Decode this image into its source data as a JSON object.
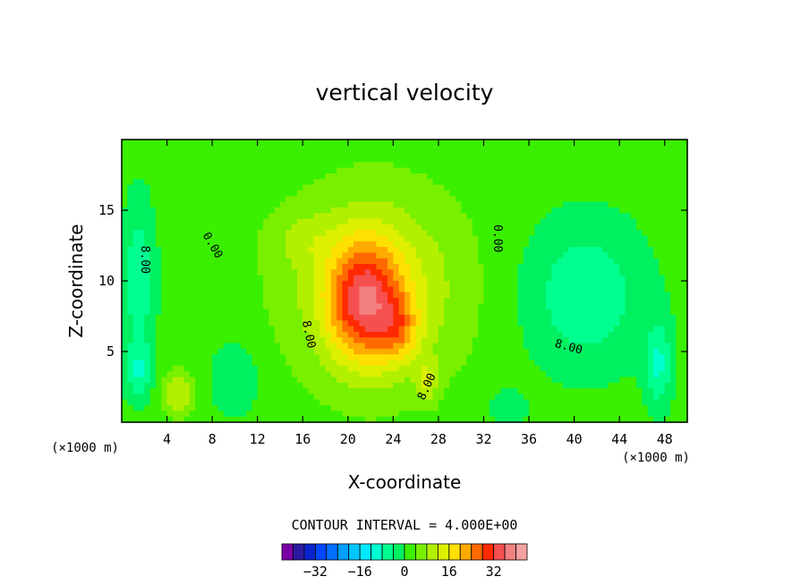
{
  "chart_data": {
    "type": "heatmap",
    "title": "vertical velocity",
    "xlabel": "X-coordinate",
    "ylabel": "Z-coordinate",
    "x_unit": "(×1000 m)",
    "y_unit": "(×1000 m)",
    "xlim": [
      0,
      50
    ],
    "ylim": [
      0,
      20
    ],
    "x_ticks": [
      4,
      8,
      12,
      16,
      20,
      24,
      28,
      32,
      36,
      40,
      44,
      48
    ],
    "y_ticks": [
      5,
      10,
      15
    ],
    "contour_interval_text": "CONTOUR INTERVAL = 4.000E+00",
    "contour_labels": [
      {
        "text": "0.00",
        "x": 8.0,
        "z": 12.5,
        "angle": 60
      },
      {
        "text": "0.00",
        "x": 33.2,
        "z": 13.0,
        "angle": 90
      },
      {
        "text": "8.00",
        "x": 2.0,
        "z": 11.5,
        "angle": 90
      },
      {
        "text": "8.00",
        "x": 16.5,
        "z": 6.2,
        "angle": 78
      },
      {
        "text": "8.00",
        "x": 27.0,
        "z": 2.5,
        "angle": -65
      },
      {
        "text": "8.00",
        "x": 39.5,
        "z": 5.3,
        "angle": 15
      }
    ],
    "colorbar": {
      "ticks": [
        -32,
        -16,
        0,
        16,
        32
      ],
      "levels": [
        -40,
        -36,
        -32,
        -28,
        -24,
        -20,
        -16,
        -12,
        -8,
        -4,
        0,
        4,
        8,
        12,
        16,
        20,
        24,
        28,
        32,
        36,
        40
      ],
      "colors": [
        "#7a00a6",
        "#2a1aa0",
        "#0a23cc",
        "#0047ff",
        "#0070ff",
        "#009fff",
        "#00c8ff",
        "#00eaff",
        "#00ffd0",
        "#00ff90",
        "#00f060",
        "#3af000",
        "#78f000",
        "#b2f000",
        "#dcf000",
        "#ffe000",
        "#ffaa00",
        "#ff6a00",
        "#ff2a00",
        "#f55050",
        "#f28080",
        "#f4a0a0"
      ]
    },
    "fields": {
      "background_value": 2,
      "features": [
        {
          "sign": "positive",
          "x": 21.5,
          "z": 8.5,
          "peak": 27
        },
        {
          "sign": "positive",
          "x": 24.5,
          "z": 6.5,
          "peak": 18
        },
        {
          "sign": "positive",
          "x": 16.0,
          "z": 13.0,
          "peak": 6
        },
        {
          "sign": "positive",
          "x": 27.0,
          "z": 3.0,
          "peak": 10
        },
        {
          "sign": "positive",
          "x": 5.0,
          "z": 2.0,
          "peak": 8
        },
        {
          "sign": "negative",
          "x": 41.0,
          "z": 9.0,
          "peak": -7
        },
        {
          "sign": "negative",
          "x": 47.5,
          "z": 4.0,
          "peak": -12
        },
        {
          "sign": "negative",
          "x": 1.5,
          "z": 10.0,
          "peak": -8
        },
        {
          "sign": "negative",
          "x": 1.5,
          "z": 3.5,
          "peak": -12
        },
        {
          "sign": "negative",
          "x": 10.0,
          "z": 3.0,
          "peak": -4
        }
      ]
    }
  }
}
